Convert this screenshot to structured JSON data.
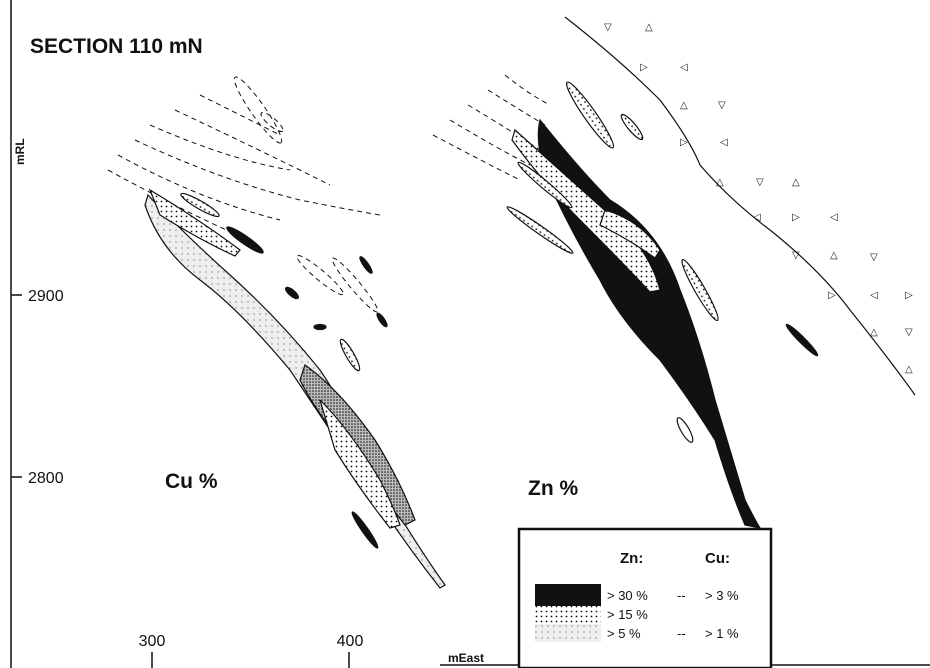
{
  "title": "SECTION 110 mN",
  "y_axis": {
    "label": "mRL",
    "ticks": [
      "2900",
      "2800"
    ]
  },
  "x_axis": {
    "label": "mEast",
    "ticks": [
      "300",
      "400"
    ]
  },
  "panels": [
    "Cu %",
    "Zn %"
  ],
  "legend": {
    "headers": [
      "Zn:",
      "Cu:"
    ],
    "rows": [
      {
        "zn": "> 30 %",
        "sep": "--",
        "cu": "> 3 %"
      },
      {
        "zn": "> 15 %"
      },
      {
        "zn": "> 5 %",
        "sep": "--",
        "cu": "> 1 %"
      }
    ]
  }
}
